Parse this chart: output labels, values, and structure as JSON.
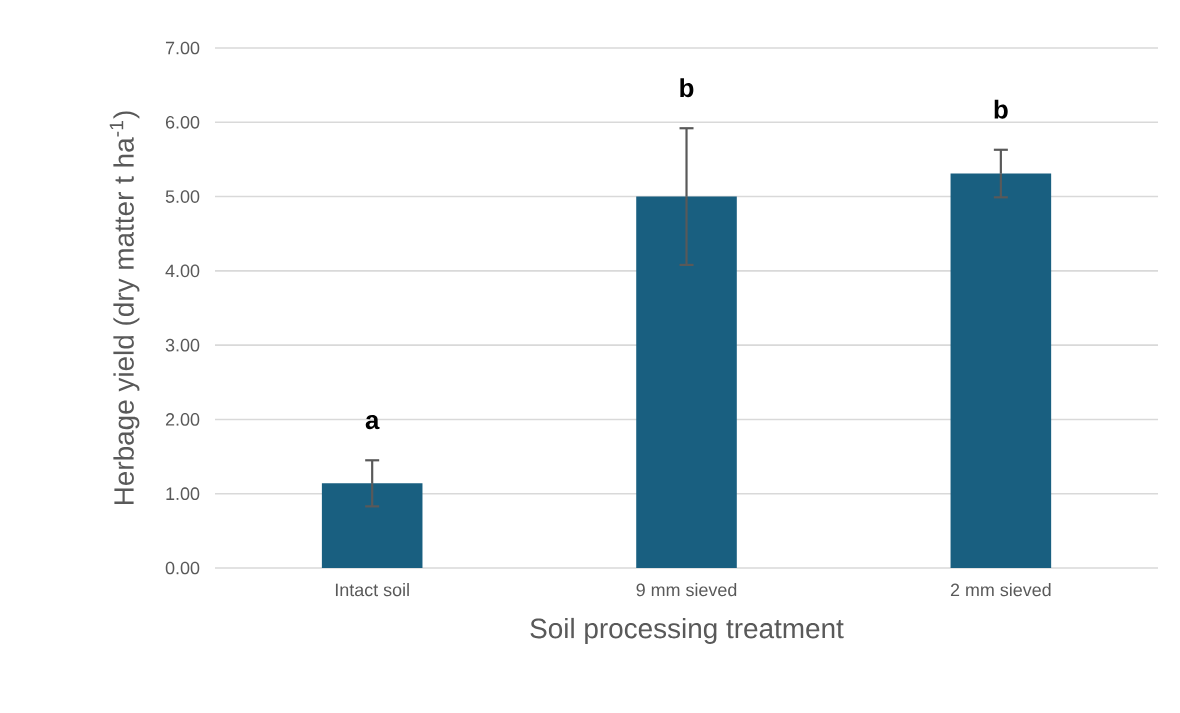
{
  "chart_data": {
    "type": "bar",
    "xlabel": "Soil processing treatment",
    "ylabel": "Herbage yield (dry matter t ha$^{-1}$)",
    "categories": [
      "Intact soil",
      "9 mm sieved",
      "2 mm sieved"
    ],
    "values": [
      1.14,
      5.0,
      5.31
    ],
    "errors": [
      0.31,
      0.92,
      0.32
    ],
    "color": "#195f80",
    "ylim": [
      0,
      7
    ],
    "yticks": [
      {
        "value": 0,
        "label": "0.00"
      },
      {
        "value": 1,
        "label": "1.00"
      },
      {
        "value": 2,
        "label": "2.00"
      },
      {
        "value": 3,
        "label": "3.00"
      },
      {
        "value": 4,
        "label": "4.00"
      },
      {
        "value": 5,
        "label": "5.00"
      },
      {
        "value": 6,
        "label": "6.00"
      },
      {
        "value": 7,
        "label": "7.00"
      }
    ],
    "grid": "y",
    "annotations": [
      "a",
      "b",
      "b"
    ]
  }
}
